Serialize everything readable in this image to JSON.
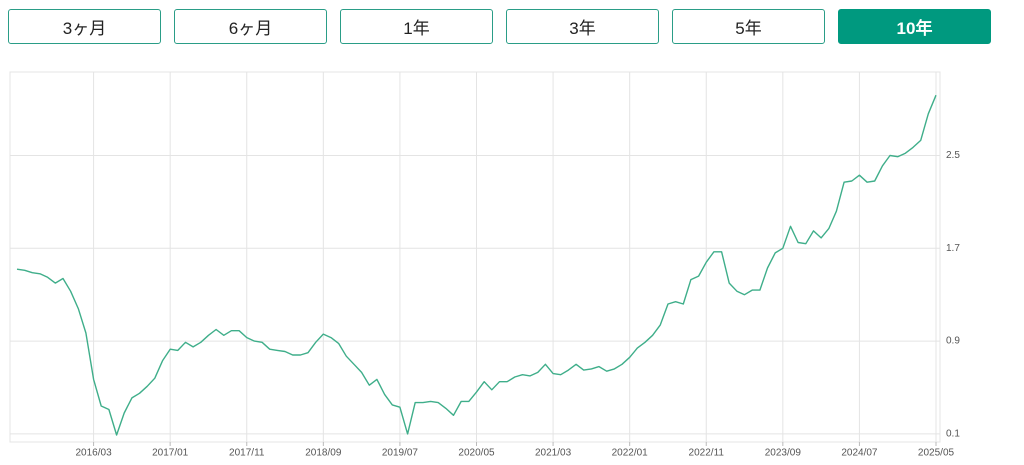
{
  "period_buttons": [
    "3ヶ月",
    "6ヶ月",
    "1年",
    "3年",
    "5年",
    "10年"
  ],
  "chart_data": {
    "type": "line",
    "color": "#3fae8a",
    "grid": true,
    "categories": [
      null,
      null,
      null,
      null,
      null,
      null,
      null,
      null,
      null,
      null,
      "2016/03",
      null,
      null,
      null,
      null,
      null,
      null,
      null,
      null,
      null,
      "2017/01",
      null,
      null,
      null,
      null,
      null,
      null,
      null,
      null,
      null,
      "2017/11",
      null,
      null,
      null,
      null,
      null,
      null,
      null,
      null,
      null,
      "2018/09",
      null,
      null,
      null,
      null,
      null,
      null,
      null,
      null,
      null,
      "2019/07",
      null,
      null,
      null,
      null,
      null,
      null,
      null,
      null,
      null,
      "2020/05",
      null,
      null,
      null,
      null,
      null,
      null,
      null,
      null,
      null,
      "2021/03",
      null,
      null,
      null,
      null,
      null,
      null,
      null,
      null,
      null,
      "2022/01",
      null,
      null,
      null,
      null,
      null,
      null,
      null,
      null,
      null,
      "2022/11",
      null,
      null,
      null,
      null,
      null,
      null,
      null,
      null,
      null,
      "2023/09",
      null,
      null,
      null,
      null,
      null,
      null,
      null,
      null,
      null,
      "2024/07",
      null,
      null,
      null,
      null,
      null,
      null,
      null,
      null,
      null,
      "2025/05"
    ],
    "values": [
      1.52,
      1.51,
      1.49,
      1.48,
      1.45,
      1.4,
      1.44,
      1.33,
      1.18,
      0.97,
      0.57,
      0.34,
      0.31,
      0.09,
      0.28,
      0.41,
      0.45,
      0.51,
      0.58,
      0.73,
      0.83,
      0.82,
      0.89,
      0.85,
      0.89,
      0.95,
      1.0,
      0.95,
      0.99,
      0.99,
      0.93,
      0.9,
      0.89,
      0.83,
      0.82,
      0.81,
      0.78,
      0.78,
      0.8,
      0.89,
      0.96,
      0.93,
      0.88,
      0.77,
      0.7,
      0.63,
      0.52,
      0.57,
      0.44,
      0.35,
      0.33,
      0.1,
      0.37,
      0.37,
      0.38,
      0.37,
      0.32,
      0.26,
      0.38,
      0.38,
      0.46,
      0.55,
      0.48,
      0.55,
      0.55,
      0.59,
      0.61,
      0.6,
      0.63,
      0.7,
      0.62,
      0.61,
      0.65,
      0.7,
      0.65,
      0.66,
      0.68,
      0.64,
      0.66,
      0.7,
      0.76,
      0.84,
      0.89,
      0.95,
      1.04,
      1.22,
      1.24,
      1.22,
      1.43,
      1.46,
      1.58,
      1.67,
      1.67,
      1.4,
      1.33,
      1.3,
      1.34,
      1.34,
      1.53,
      1.66,
      1.7,
      1.89,
      1.75,
      1.74,
      1.85,
      1.79,
      1.87,
      2.02,
      2.27,
      2.28,
      2.33,
      2.27,
      2.28,
      2.41,
      2.5,
      2.49,
      2.52,
      2.57,
      2.63,
      2.86,
      3.02
    ],
    "ylim": [
      0.03,
      3.22
    ],
    "yticks": [
      0.1,
      0.9,
      1.7,
      2.5
    ]
  }
}
